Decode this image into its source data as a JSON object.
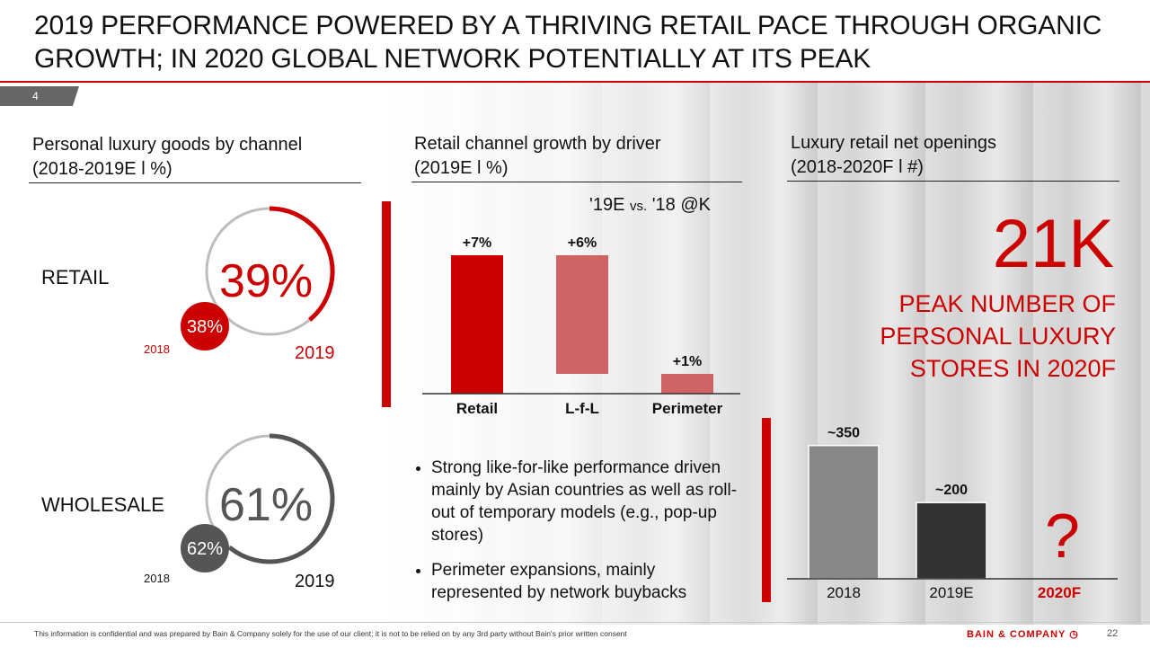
{
  "title": "2019 PERFORMANCE POWERED BY A THRIVING RETAIL PACE THROUGH ORGANIC GROWTH; IN 2020 GLOBAL NETWORK POTENTIALLY AT ITS PEAK",
  "page_tab": "4",
  "colors": {
    "accent": "#cc0000",
    "light_red": "#d06464",
    "gray": "#888888",
    "dark": "#333333"
  },
  "section1": {
    "title_line1": "Personal luxury goods by channel",
    "title_line2": "(2018-2019E l %)"
  },
  "section2": {
    "title_line1": "Retail channel growth by driver",
    "title_line2": "(2019E l %)",
    "subtitle_a": "'19E ",
    "subtitle_vs": "vs.",
    "subtitle_b": " '18 @K"
  },
  "section3": {
    "title_line1": "Luxury retail net openings",
    "title_line2": "(2018-2020F l #)",
    "big_value": "21K",
    "peak_line1": "PEAK NUMBER OF",
    "peak_line2": "PERSONAL LUXURY",
    "peak_line3": "STORES IN 2020F",
    "question": "?"
  },
  "bullets": [
    "Strong like-for-like performance driven mainly by Asian countries as well as roll-out of temporary models (e.g., pop-up stores)",
    "Perimeter expansions, mainly represented by network buybacks"
  ],
  "footer": "This information is confidential and was prepared by Bain & Company solely for the use of our client; it is not to be relied on by any 3rd party without Bain's prior written consent",
  "brand": "BAIN & COMPANY",
  "page_number": "22",
  "chart_data": [
    {
      "type": "donut",
      "label": "RETAIL",
      "current_label": "39%",
      "current_year": "2019",
      "previous_label": "38%",
      "previous_year": "2018",
      "value": 39,
      "color": "#cc0000"
    },
    {
      "type": "donut",
      "label": "WHOLESALE",
      "current_label": "61%",
      "current_year": "2019",
      "previous_label": "62%",
      "previous_year": "2018",
      "value": 61,
      "color": "#555555"
    },
    {
      "type": "bar",
      "subtype": "waterfall",
      "categories": [
        "Retail",
        "L-f-L",
        "Perimeter"
      ],
      "values": [
        7,
        6,
        1
      ],
      "value_labels": [
        "+7%",
        "+6%",
        "+1%"
      ],
      "ylim": [
        0,
        7
      ]
    },
    {
      "type": "bar",
      "categories": [
        "2018",
        "2019E",
        "2020F"
      ],
      "values": [
        350,
        200,
        null
      ],
      "value_labels": [
        "~350",
        "~200",
        ""
      ],
      "ylim": [
        0,
        420
      ]
    }
  ]
}
